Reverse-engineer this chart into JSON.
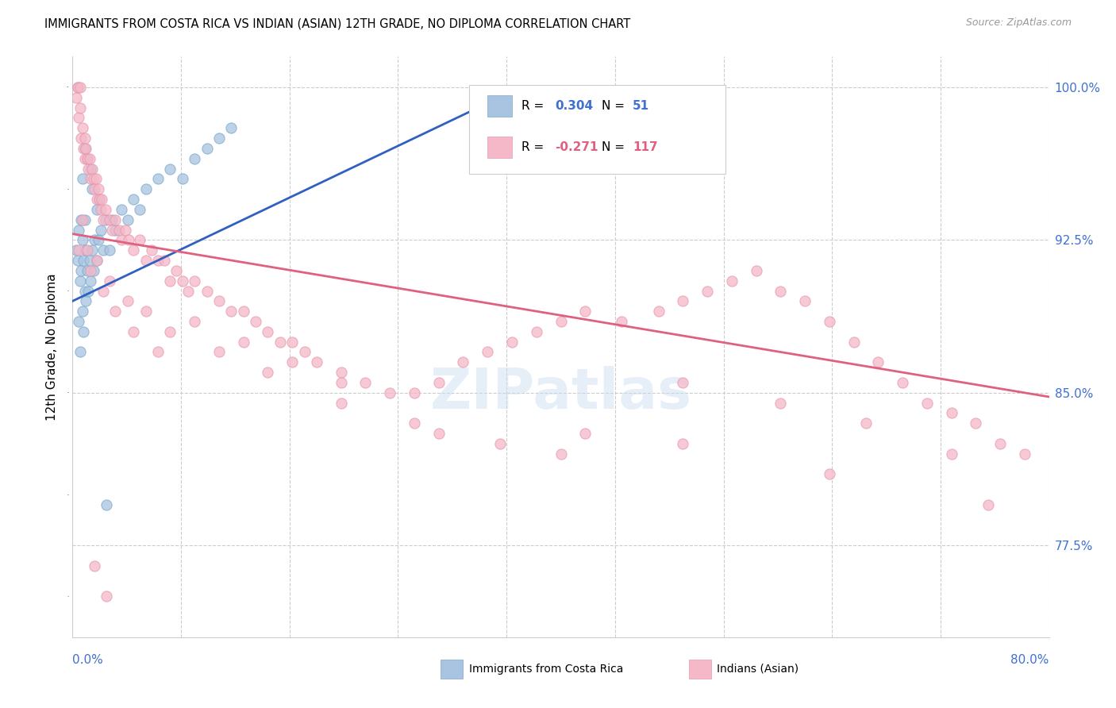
{
  "title": "IMMIGRANTS FROM COSTA RICA VS INDIAN (ASIAN) 12TH GRADE, NO DIPLOMA CORRELATION CHART",
  "source": "Source: ZipAtlas.com",
  "ylabel": "12th Grade, No Diploma",
  "right_yticks": [
    100.0,
    92.5,
    85.0,
    77.5
  ],
  "right_ytick_labels": [
    "100.0%",
    "92.5%",
    "85.0%",
    "77.5%"
  ],
  "xmin": 0.0,
  "xmax": 80.0,
  "ymin": 73.0,
  "ymax": 101.5,
  "blue_color": "#a8c4e0",
  "pink_color": "#f4b8c8",
  "blue_line_color": "#3060c0",
  "pink_line_color": "#e06080",
  "blue_edge_color": "#7aaacc",
  "pink_edge_color": "#e898b0",
  "watermark": "ZIPatlas",
  "blue_R": 0.304,
  "blue_N": 51,
  "pink_R": -0.271,
  "pink_N": 117,
  "blue_line_x0": 0.0,
  "blue_line_x1": 35.0,
  "blue_line_y0": 89.5,
  "blue_line_y1": 99.5,
  "pink_line_x0": 0.0,
  "pink_line_x1": 80.0,
  "pink_line_y0": 92.8,
  "pink_line_y1": 84.8,
  "blue_scatter_x": [
    0.3,
    0.4,
    0.5,
    0.5,
    0.6,
    0.6,
    0.7,
    0.7,
    0.8,
    0.8,
    0.9,
    0.9,
    1.0,
    1.0,
    1.1,
    1.1,
    1.2,
    1.3,
    1.4,
    1.5,
    1.6,
    1.7,
    1.8,
    2.0,
    2.1,
    2.3,
    2.5,
    2.7,
    3.0,
    3.2,
    3.5,
    4.0,
    4.5,
    5.0,
    5.5,
    6.0,
    7.0,
    8.0,
    9.0,
    10.0,
    11.0,
    12.0,
    13.0,
    1.5,
    1.6,
    2.0,
    2.2,
    0.8,
    1.0,
    1.2,
    2.8
  ],
  "blue_scatter_y": [
    92.0,
    91.5,
    93.0,
    88.5,
    90.5,
    87.0,
    91.0,
    93.5,
    92.5,
    89.0,
    91.5,
    88.0,
    93.5,
    90.0,
    92.0,
    89.5,
    91.0,
    90.0,
    91.5,
    90.5,
    92.0,
    91.0,
    92.5,
    91.5,
    92.5,
    93.0,
    92.0,
    93.5,
    92.0,
    93.5,
    93.0,
    94.0,
    93.5,
    94.5,
    94.0,
    95.0,
    95.5,
    96.0,
    95.5,
    96.5,
    97.0,
    97.5,
    98.0,
    96.0,
    95.0,
    94.0,
    94.5,
    95.5,
    97.0,
    96.5,
    79.5
  ],
  "pink_scatter_x": [
    0.3,
    0.4,
    0.5,
    0.6,
    0.7,
    0.8,
    0.9,
    1.0,
    1.0,
    1.1,
    1.2,
    1.3,
    1.4,
    1.5,
    1.6,
    1.7,
    1.8,
    1.9,
    2.0,
    2.1,
    2.2,
    2.3,
    2.4,
    2.5,
    2.7,
    3.0,
    3.2,
    3.5,
    3.8,
    4.0,
    4.3,
    4.6,
    5.0,
    5.5,
    6.0,
    6.5,
    7.0,
    7.5,
    8.0,
    8.5,
    9.0,
    9.5,
    10.0,
    11.0,
    12.0,
    13.0,
    14.0,
    15.0,
    16.0,
    17.0,
    18.0,
    19.0,
    20.0,
    22.0,
    24.0,
    26.0,
    28.0,
    30.0,
    32.0,
    34.0,
    36.0,
    38.0,
    40.0,
    42.0,
    45.0,
    48.0,
    50.0,
    52.0,
    54.0,
    56.0,
    58.0,
    60.0,
    62.0,
    64.0,
    66.0,
    68.0,
    70.0,
    72.0,
    74.0,
    76.0,
    78.0,
    0.5,
    1.5,
    2.5,
    3.5,
    5.0,
    7.0,
    10.0,
    14.0,
    18.0,
    22.0,
    28.0,
    35.0,
    42.0,
    50.0,
    58.0,
    65.0,
    72.0,
    0.8,
    1.2,
    2.0,
    3.0,
    4.5,
    6.0,
    8.0,
    12.0,
    16.0,
    22.0,
    30.0,
    40.0,
    50.0,
    62.0,
    75.0,
    0.4,
    0.6,
    1.8,
    2.8
  ],
  "pink_scatter_y": [
    99.5,
    100.0,
    98.5,
    99.0,
    97.5,
    98.0,
    97.0,
    97.5,
    96.5,
    97.0,
    96.5,
    96.0,
    96.5,
    95.5,
    96.0,
    95.5,
    95.0,
    95.5,
    94.5,
    95.0,
    94.5,
    94.0,
    94.5,
    93.5,
    94.0,
    93.5,
    93.0,
    93.5,
    93.0,
    92.5,
    93.0,
    92.5,
    92.0,
    92.5,
    91.5,
    92.0,
    91.5,
    91.5,
    90.5,
    91.0,
    90.5,
    90.0,
    90.5,
    90.0,
    89.5,
    89.0,
    89.0,
    88.5,
    88.0,
    87.5,
    87.5,
    87.0,
    86.5,
    86.0,
    85.5,
    85.0,
    85.0,
    85.5,
    86.5,
    87.0,
    87.5,
    88.0,
    88.5,
    89.0,
    88.5,
    89.0,
    89.5,
    90.0,
    90.5,
    91.0,
    90.0,
    89.5,
    88.5,
    87.5,
    86.5,
    85.5,
    84.5,
    84.0,
    83.5,
    82.5,
    82.0,
    92.0,
    91.0,
    90.0,
    89.0,
    88.0,
    87.0,
    88.5,
    87.5,
    86.5,
    85.5,
    83.5,
    82.5,
    83.0,
    85.5,
    84.5,
    83.5,
    82.0,
    93.5,
    92.0,
    91.5,
    90.5,
    89.5,
    89.0,
    88.0,
    87.0,
    86.0,
    84.5,
    83.0,
    82.0,
    82.5,
    81.0,
    79.5,
    100.0,
    100.0,
    76.5,
    75.0
  ]
}
